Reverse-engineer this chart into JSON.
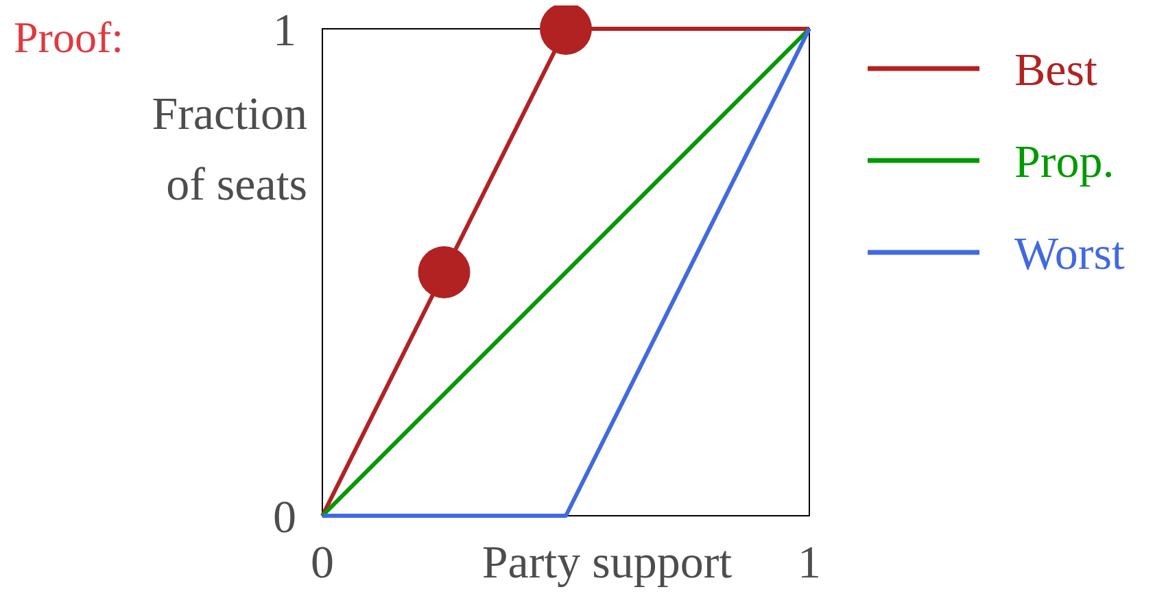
{
  "chart_data": {
    "type": "line",
    "xlabel": "Party support",
    "ylabel": "Fraction of seats",
    "annotations": [
      "Proof:"
    ],
    "xlim": [
      0,
      1
    ],
    "ylim": [
      0,
      1
    ],
    "xticks": [
      0,
      1
    ],
    "yticks": [
      0,
      1
    ],
    "legend": "right",
    "marker": "none",
    "series": [
      {
        "name": "Best",
        "color": "#b22222",
        "x": [
          0,
          0.5,
          1
        ],
        "values": [
          0,
          1,
          1
        ]
      },
      {
        "name": "Prop.",
        "color": "#009900",
        "x": [
          0,
          1
        ],
        "values": [
          0,
          1
        ]
      },
      {
        "name": "Worst",
        "color": "#4169e1",
        "x": [
          0,
          0.5,
          1
        ],
        "values": [
          0,
          0,
          1
        ]
      },
      {
        "type": "scatter",
        "color": "#b22222",
        "x": [
          0.25,
          0.5
        ],
        "values": [
          0.5,
          1
        ],
        "marker": "circle"
      }
    ]
  }
}
